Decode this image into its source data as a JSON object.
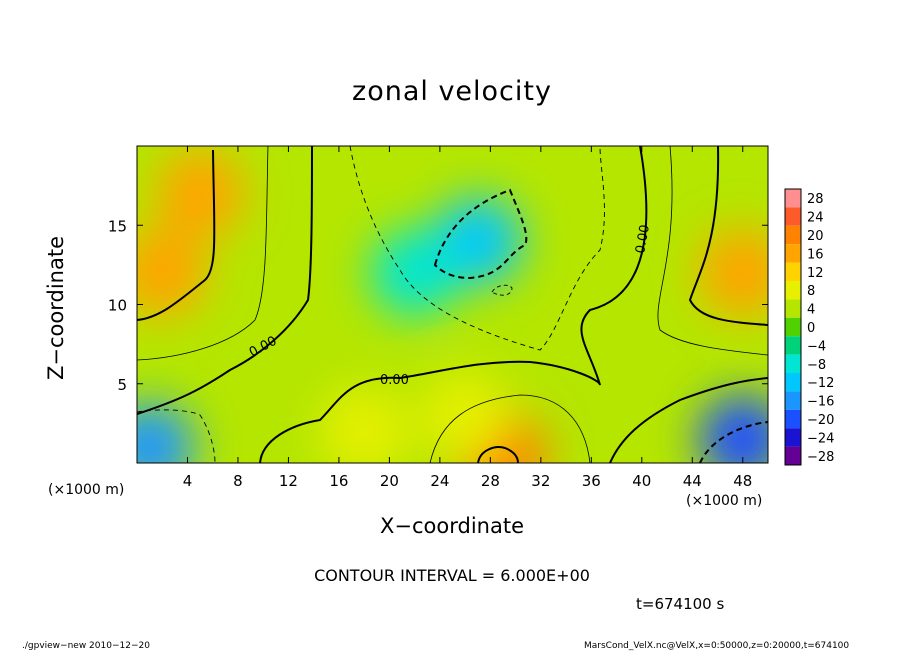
{
  "chart_data": {
    "type": "heatmap",
    "title": "zonal velocity",
    "xlabel": "X−coordinate",
    "ylabel": "Z−coordinate",
    "x_unit_label": "(×1000 m)",
    "xlim": [
      0,
      50
    ],
    "ylim": [
      0,
      20
    ],
    "x_ticks": [
      4,
      8,
      12,
      16,
      20,
      24,
      28,
      32,
      36,
      40,
      44,
      48
    ],
    "y_ticks": [
      5,
      10,
      15
    ],
    "contour_interval_text": "CONTOUR INTERVAL = 6.000E+00",
    "time_text": "t=674100 s",
    "contour_labels": [
      "0.00",
      "0.00",
      "0.00"
    ],
    "colorbar": {
      "levels": [
        28,
        24,
        20,
        16,
        12,
        8,
        4,
        0,
        -4,
        -8,
        -12,
        -16,
        -20,
        -24,
        -28
      ],
      "level_labels": [
        "28",
        "24",
        "20",
        "16",
        "12",
        "8",
        "4",
        "0",
        "−4",
        "−8",
        "−12",
        "−16",
        "−20",
        "−24",
        "−28"
      ],
      "colors": [
        "#ff8f8f",
        "#ff5a2a",
        "#ff8200",
        "#ffa400",
        "#ffd200",
        "#e6f000",
        "#b4e600",
        "#50d200",
        "#00d27a",
        "#00e6d2",
        "#00c8ff",
        "#1a96ff",
        "#1a50ff",
        "#1a14d2",
        "#640096"
      ]
    },
    "field_features": [
      {
        "x": 2,
        "z": 12,
        "value": 16
      },
      {
        "x": 5,
        "z": 17,
        "value": 14
      },
      {
        "x": 48,
        "z": 12,
        "value": 16
      },
      {
        "x": 27,
        "z": 14,
        "value": -14
      },
      {
        "x": 22,
        "z": 12,
        "value": -8
      },
      {
        "x": 1,
        "z": 1,
        "value": -18
      },
      {
        "x": 48,
        "z": 1.5,
        "value": -22
      },
      {
        "x": 29,
        "z": 0.5,
        "value": 18
      },
      {
        "x": 26,
        "z": 3,
        "value": 8
      },
      {
        "x": 18,
        "z": 2,
        "value": 6
      }
    ]
  },
  "footer": {
    "left": "./gpview−new   2010−12−20",
    "right": "MarsCond_VelX.nc@VelX,x=0:50000,z=0:20000,t=674100"
  }
}
